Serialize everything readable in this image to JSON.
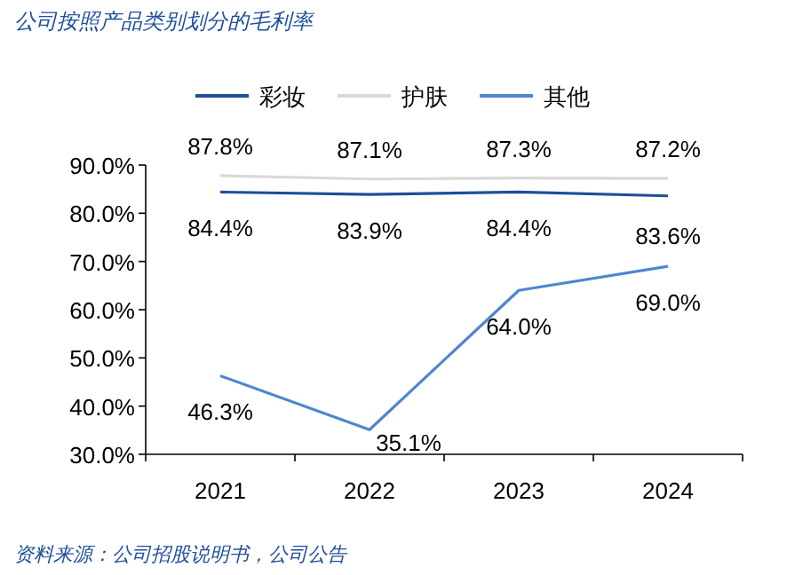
{
  "chart_data": {
    "type": "line",
    "title": "公司按照产品类别划分的毛利率",
    "categories": [
      "2021",
      "2022",
      "2023",
      "2024"
    ],
    "series": [
      {
        "name": "彩妆",
        "color": "#1f4e9b",
        "values": [
          84.4,
          83.9,
          84.4,
          83.6
        ],
        "value_labels": [
          "84.4%",
          "83.9%",
          "84.4%",
          "83.6%"
        ]
      },
      {
        "name": "护肤",
        "color": "#d9d9d9",
        "values": [
          87.8,
          87.1,
          87.3,
          87.2
        ],
        "value_labels": [
          "87.8%",
          "87.1%",
          "87.3%",
          "87.2%"
        ]
      },
      {
        "name": "其他",
        "color": "#4f86cf",
        "values": [
          46.3,
          35.1,
          64.0,
          69.0
        ],
        "value_labels": [
          "46.3%",
          "35.1%",
          "64.0%",
          "69.0%"
        ]
      }
    ],
    "ylim": [
      30,
      90
    ],
    "yticks": [
      {
        "value": 30,
        "label": "30.0%"
      },
      {
        "value": 40,
        "label": "40.0%"
      },
      {
        "value": 50,
        "label": "50.0%"
      },
      {
        "value": 60,
        "label": "60.0%"
      },
      {
        "value": 70,
        "label": "70.0%"
      },
      {
        "value": 80,
        "label": "80.0%"
      },
      {
        "value": 90,
        "label": "90.0%"
      }
    ],
    "grid": false,
    "legend": "top",
    "marker": "none",
    "line_style": "solid",
    "annotations": [
      "资料来源：公司招股说明书，公司公告"
    ]
  }
}
